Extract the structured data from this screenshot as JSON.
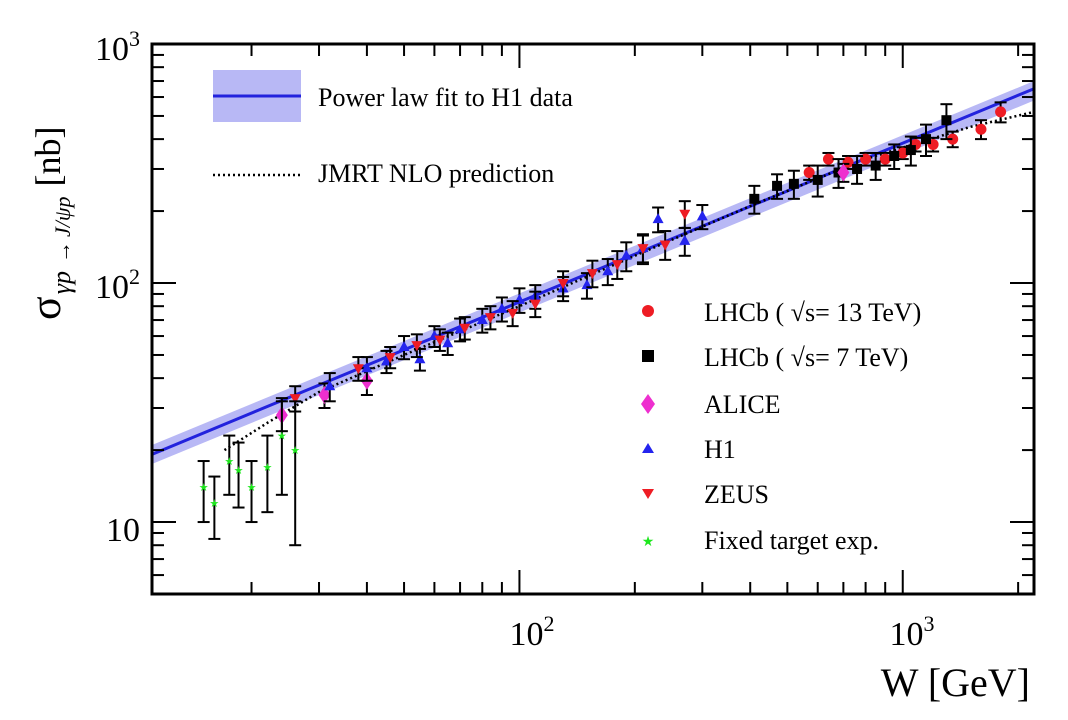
{
  "chart_data": {
    "type": "scatter",
    "title": "",
    "xlabel": "W [GeV]",
    "ylabel": "σ γp → J/ψp [nb]",
    "ylabel_parts": {
      "sigma": "σ",
      "sub1": "γp",
      "arrow": "→",
      "sub2": "J/ψp",
      "unit": "[nb]"
    },
    "xscale": "log",
    "yscale": "log",
    "xlim": [
      11,
      2200
    ],
    "ylim": [
      5,
      1000
    ],
    "x_ticks": [
      {
        "base": "10",
        "exp": "2",
        "value": 100
      },
      {
        "base": "10",
        "exp": "3",
        "value": 1000
      }
    ],
    "y_ticks": [
      {
        "base": "10",
        "exp": "",
        "value": 10
      },
      {
        "base": "10",
        "exp": "2",
        "value": 100
      },
      {
        "base": "10",
        "exp": "3",
        "value": 1000
      }
    ],
    "grid": false,
    "fit": {
      "name": "Power law fit to H1 data",
      "color": "#2222dd",
      "band_color": "#b8b8f5",
      "x": [
        11,
        2200
      ],
      "y": [
        19.2,
        650
      ],
      "band_low": [
        17.5,
        580
      ],
      "band_high": [
        21.0,
        700
      ]
    },
    "prediction": {
      "name": "JMRT NLO prediction",
      "color": "#000000",
      "x": [
        17,
        22,
        30,
        50,
        100,
        200,
        400,
        800,
        1500,
        2200
      ],
      "y": [
        20,
        26,
        35,
        50,
        80,
        130,
        210,
        330,
        450,
        520
      ]
    },
    "legend_top": [
      "Power law fit to H1 data",
      "JMRT NLO prediction"
    ],
    "series": [
      {
        "name": "LHCb ( √s= 13 TeV)",
        "label_pre": "LHCb ( ",
        "label_sqrt": "√s",
        "label_post": "= 13 TeV)",
        "marker": "circle",
        "color": "#ee1c24",
        "x": [
          570,
          640,
          720,
          800,
          900,
          1000,
          1080,
          1200,
          1350,
          1600,
          1800
        ],
        "y": [
          290,
          330,
          320,
          330,
          330,
          350,
          380,
          380,
          400,
          440,
          520
        ],
        "err": [
          20,
          20,
          20,
          20,
          20,
          20,
          25,
          25,
          30,
          40,
          50
        ]
      },
      {
        "name": "LHCb ( √s= 7 TeV)",
        "label_pre": "LHCb ( ",
        "label_sqrt": "√s",
        "label_post": "= 7 TeV)",
        "marker": "square",
        "color": "#000000",
        "x": [
          410,
          470,
          520,
          600,
          680,
          760,
          850,
          950,
          1050,
          1150,
          1300
        ],
        "y": [
          225,
          255,
          260,
          270,
          290,
          300,
          310,
          340,
          360,
          400,
          480
        ],
        "err": [
          30,
          30,
          35,
          40,
          40,
          40,
          40,
          40,
          50,
          60,
          80
        ]
      },
      {
        "name": "ALICE",
        "label_pre": "ALICE",
        "label_sqrt": "",
        "label_post": "",
        "marker": "diamond",
        "color": "#ee2fcf",
        "x": [
          24,
          31,
          40,
          700
        ],
        "y": [
          28,
          34,
          39,
          290
        ],
        "err": [
          4,
          4,
          5,
          25
        ]
      },
      {
        "name": "H1",
        "label_pre": "H1",
        "label_sqrt": "",
        "label_post": "",
        "marker": "triangle-up",
        "color": "#2424ee",
        "x": [
          32,
          40,
          45,
          50,
          55,
          60,
          65,
          70,
          80,
          90,
          100,
          110,
          130,
          150,
          170,
          190,
          210,
          230,
          270,
          300
        ],
        "y": [
          37,
          44,
          47,
          54,
          48,
          60,
          56,
          64,
          70,
          78,
          85,
          88,
          95,
          98,
          112,
          130,
          140,
          185,
          150,
          190
        ],
        "err": [
          5,
          5,
          5,
          6,
          5,
          6,
          6,
          7,
          8,
          9,
          10,
          10,
          11,
          12,
          14,
          18,
          20,
          22,
          20,
          22
        ]
      },
      {
        "name": "ZEUS",
        "label_pre": "ZEUS",
        "label_sqrt": "",
        "label_post": "",
        "marker": "triangle-down",
        "color": "#ee1c24",
        "x": [
          26,
          38,
          46,
          54,
          62,
          72,
          84,
          96,
          110,
          130,
          155,
          180,
          210,
          240,
          270
        ],
        "y": [
          33,
          44,
          49,
          55,
          58,
          65,
          72,
          75,
          82,
          100,
          110,
          120,
          140,
          145,
          195
        ],
        "err": [
          4,
          5,
          5,
          6,
          6,
          7,
          8,
          9,
          10,
          12,
          14,
          16,
          18,
          20,
          25
        ]
      },
      {
        "name": "Fixed target exp.",
        "label_pre": "Fixed target exp.",
        "label_sqrt": "",
        "label_post": "",
        "marker": "star",
        "color": "#1ee71e",
        "x": [
          15,
          16,
          17.5,
          18.5,
          20,
          22,
          24,
          26
        ],
        "y": [
          14,
          12,
          18,
          16.5,
          14,
          17,
          23,
          20
        ],
        "err": [
          4,
          3.5,
          5,
          5,
          4,
          6,
          10,
          12
        ]
      }
    ]
  }
}
